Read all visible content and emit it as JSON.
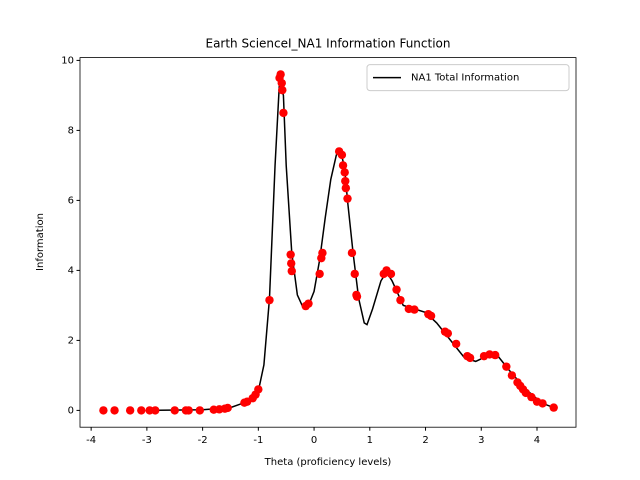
{
  "chart_data": {
    "type": "line",
    "title": "Earth ScienceI_NA1 Information Function",
    "xlabel": "Theta (proficiency levels)",
    "ylabel": "Information",
    "xlim": [
      -4.2,
      4.7
    ],
    "ylim": [
      -0.48,
      10.08
    ],
    "xticks": [
      -4,
      -3,
      -2,
      -1,
      0,
      1,
      2,
      3,
      4
    ],
    "yticks": [
      0,
      2,
      4,
      6,
      8,
      10
    ],
    "legend": "upper right",
    "series": [
      {
        "name": "NA1 Total Information",
        "color": "#000000",
        "x": [
          -3,
          -2,
          -1.5,
          -1.2,
          -1.0,
          -0.9,
          -0.8,
          -0.7,
          -0.62,
          -0.55,
          -0.5,
          -0.4,
          -0.3,
          -0.2,
          -0.1,
          0,
          0.1,
          0.2,
          0.3,
          0.4,
          0.48,
          0.55,
          0.6,
          0.7,
          0.8,
          0.9,
          0.95,
          1.05,
          1.2,
          1.3,
          1.4,
          1.6,
          1.8,
          2.0,
          2.2,
          2.5,
          2.7,
          2.9,
          3.1,
          3.3,
          3.5,
          3.8,
          4.1,
          4.3
        ],
        "values": [
          0,
          0.02,
          0.08,
          0.25,
          0.55,
          1.3,
          3.2,
          7.0,
          9.4,
          9.0,
          7.0,
          4.5,
          3.3,
          2.95,
          3.0,
          3.4,
          4.3,
          5.5,
          6.6,
          7.3,
          7.4,
          6.9,
          6.0,
          4.5,
          3.2,
          2.5,
          2.45,
          2.9,
          3.7,
          3.95,
          3.7,
          3.0,
          2.9,
          2.8,
          2.5,
          1.9,
          1.5,
          1.4,
          1.55,
          1.55,
          1.15,
          0.6,
          0.2,
          0.08
        ]
      }
    ],
    "points": {
      "color": "#ff0000",
      "x": [
        -3.78,
        -3.58,
        -3.3,
        -3.1,
        -2.95,
        -2.85,
        -2.5,
        -2.3,
        -2.25,
        -2.05,
        -1.8,
        -1.7,
        -1.6,
        -1.55,
        -1.25,
        -1.2,
        -1.1,
        -1.05,
        -1.0,
        -0.8,
        -0.62,
        -0.6,
        -0.58,
        -0.57,
        -0.55,
        -0.42,
        -0.41,
        -0.4,
        -0.15,
        -0.1,
        0.1,
        0.13,
        0.15,
        0.45,
        0.5,
        0.52,
        0.55,
        0.56,
        0.57,
        0.6,
        0.68,
        0.73,
        0.76,
        0.77,
        1.25,
        1.3,
        1.38,
        1.48,
        1.55,
        1.7,
        1.8,
        2.05,
        2.1,
        2.35,
        2.4,
        2.55,
        2.75,
        2.8,
        3.05,
        3.15,
        3.25,
        3.45,
        3.55,
        3.65,
        3.7,
        3.75,
        3.8,
        3.9,
        4.0,
        4.1,
        4.3
      ],
      "values": [
        0,
        0,
        0,
        0,
        0,
        0,
        0,
        0,
        0,
        0,
        0.02,
        0.03,
        0.05,
        0.07,
        0.22,
        0.25,
        0.35,
        0.45,
        0.6,
        3.15,
        9.5,
        9.6,
        9.35,
        9.15,
        8.5,
        4.45,
        4.2,
        3.98,
        2.98,
        3.05,
        3.9,
        4.35,
        4.5,
        7.4,
        7.3,
        7.0,
        6.8,
        6.55,
        6.35,
        6.05,
        4.5,
        3.9,
        3.3,
        3.25,
        3.9,
        4.0,
        3.9,
        3.45,
        3.15,
        2.9,
        2.88,
        2.75,
        2.7,
        2.25,
        2.2,
        1.9,
        1.55,
        1.5,
        1.55,
        1.6,
        1.58,
        1.25,
        1.0,
        0.8,
        0.7,
        0.6,
        0.5,
        0.38,
        0.25,
        0.2,
        0.08
      ]
    }
  }
}
